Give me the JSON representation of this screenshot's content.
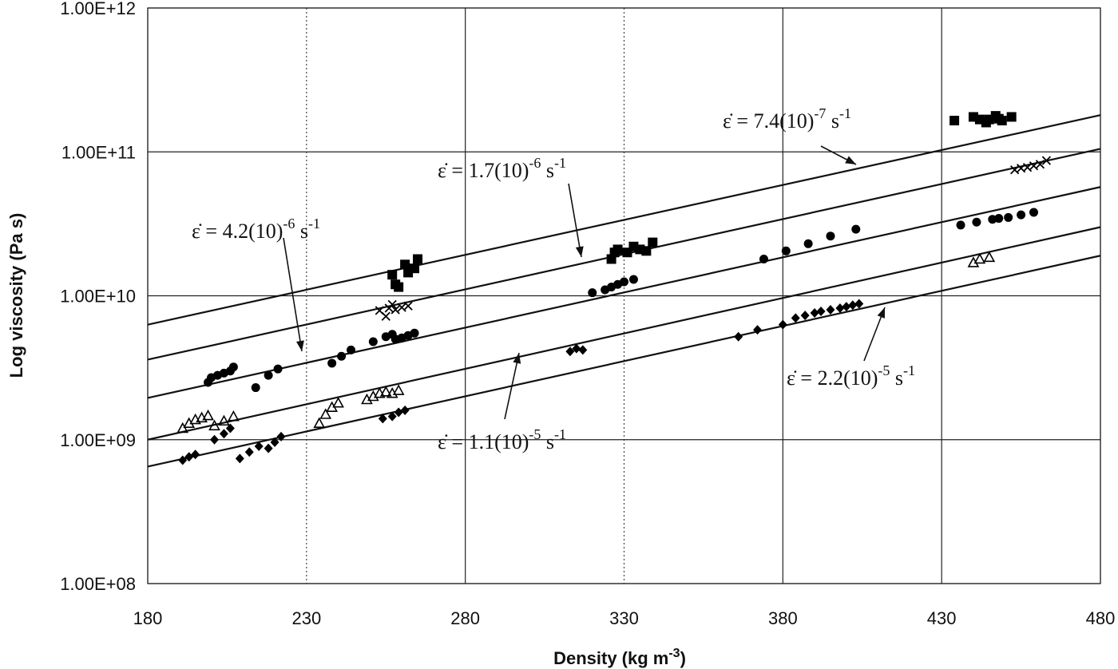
{
  "chart_data": {
    "type": "scatter",
    "title": "",
    "xlabel": "Density (kg m",
    "xlabel_sup": "-3",
    "xlabel_close": ")",
    "ylabel": "Log viscosity (Pa s)",
    "y_scale": "log",
    "xlim": [
      180,
      480
    ],
    "ylim": [
      100000000,
      1000000000000
    ],
    "x_ticks": [
      180,
      230,
      280,
      330,
      380,
      430,
      480
    ],
    "x_tick_labels": [
      "180",
      "230",
      "280",
      "330",
      "380",
      "430",
      "480"
    ],
    "y_ticks": [
      100000000,
      1000000000,
      10000000000,
      100000000000,
      1000000000000
    ],
    "y_tick_labels": [
      "1.00E+08",
      "1.00E+09",
      "1.00E+10",
      "1.00E+11",
      "1.00E+12"
    ],
    "grid": true,
    "series": [
      {
        "marker": "square",
        "color": "#000000",
        "points": [
          [
            257,
            14000000000
          ],
          [
            258,
            12000000000
          ],
          [
            259,
            11500000000
          ],
          [
            261,
            16500000000
          ],
          [
            262,
            14500000000
          ],
          [
            264,
            15500000000
          ],
          [
            265,
            18000000000
          ],
          [
            326,
            18000000000
          ],
          [
            327,
            20000000000
          ],
          [
            328,
            21000000000
          ],
          [
            331,
            20000000000
          ],
          [
            333,
            22000000000
          ],
          [
            335,
            21000000000
          ],
          [
            337,
            20500000000
          ],
          [
            339,
            23500000000
          ],
          [
            434,
            165000000000
          ],
          [
            440,
            175000000000
          ],
          [
            442,
            168000000000
          ],
          [
            444,
            160000000000
          ],
          [
            445,
            168000000000
          ],
          [
            447,
            178000000000
          ],
          [
            448,
            170000000000
          ],
          [
            449,
            165000000000
          ],
          [
            452,
            175000000000
          ]
        ]
      },
      {
        "marker": "x",
        "color": "#000000",
        "points": [
          [
            253,
            7900000000
          ],
          [
            255,
            7200000000
          ],
          [
            256,
            8200000000
          ],
          [
            257,
            8700000000
          ],
          [
            258,
            8000000000
          ],
          [
            260,
            8300000000
          ],
          [
            262,
            8500000000
          ],
          [
            453,
            75000000000
          ],
          [
            455,
            77000000000
          ],
          [
            457,
            78000000000
          ],
          [
            459,
            80000000000
          ],
          [
            461,
            82000000000
          ],
          [
            463,
            87000000000
          ]
        ]
      },
      {
        "marker": "circle",
        "color": "#000000",
        "points": [
          [
            199,
            2500000000
          ],
          [
            200,
            2700000000
          ],
          [
            202,
            2800000000
          ],
          [
            204,
            2900000000
          ],
          [
            206,
            3000000000
          ],
          [
            207,
            3200000000
          ],
          [
            214,
            2300000000
          ],
          [
            218,
            2800000000
          ],
          [
            221,
            3100000000
          ],
          [
            238,
            3400000000
          ],
          [
            241,
            3800000000
          ],
          [
            244,
            4200000000
          ],
          [
            251,
            4800000000
          ],
          [
            255,
            5200000000
          ],
          [
            257,
            5400000000
          ],
          [
            258,
            5000000000
          ],
          [
            260,
            5100000000
          ],
          [
            262,
            5300000000
          ],
          [
            264,
            5500000000
          ],
          [
            320,
            10500000000
          ],
          [
            324,
            11000000000
          ],
          [
            326,
            11500000000
          ],
          [
            328,
            12000000000
          ],
          [
            330,
            12500000000
          ],
          [
            333,
            13000000000
          ],
          [
            374,
            18000000000
          ],
          [
            381,
            20500000000
          ],
          [
            388,
            23000000000
          ],
          [
            395,
            26000000000
          ],
          [
            403,
            29000000000
          ],
          [
            436,
            31000000000
          ],
          [
            441,
            32500000000
          ],
          [
            446,
            34000000000
          ],
          [
            448,
            34500000000
          ],
          [
            451,
            35000000000
          ],
          [
            455,
            36500000000
          ],
          [
            459,
            38000000000
          ]
        ]
      },
      {
        "marker": "triangle",
        "color": "#000000",
        "points": [
          [
            191,
            1200000000
          ],
          [
            193,
            1300000000
          ],
          [
            195,
            1380000000
          ],
          [
            197,
            1420000000
          ],
          [
            199,
            1470000000
          ],
          [
            201,
            1250000000
          ],
          [
            204,
            1350000000
          ],
          [
            207,
            1450000000
          ],
          [
            234,
            1300000000
          ],
          [
            236,
            1500000000
          ],
          [
            238,
            1680000000
          ],
          [
            240,
            1800000000
          ],
          [
            249,
            1900000000
          ],
          [
            251,
            2000000000
          ],
          [
            253,
            2100000000
          ],
          [
            255,
            2150000000
          ],
          [
            257,
            2100000000
          ],
          [
            259,
            2200000000
          ],
          [
            440,
            17000000000
          ],
          [
            442,
            18000000000
          ],
          [
            445,
            18500000000
          ]
        ]
      },
      {
        "marker": "diamond",
        "color": "#000000",
        "points": [
          [
            191,
            720000000
          ],
          [
            193,
            760000000
          ],
          [
            195,
            790000000
          ],
          [
            201,
            1000000000
          ],
          [
            204,
            1100000000
          ],
          [
            206,
            1200000000
          ],
          [
            209,
            740000000
          ],
          [
            212,
            820000000
          ],
          [
            215,
            900000000
          ],
          [
            218,
            870000000
          ],
          [
            220,
            960000000
          ],
          [
            222,
            1050000000
          ],
          [
            254,
            1400000000
          ],
          [
            257,
            1450000000
          ],
          [
            259,
            1550000000
          ],
          [
            261,
            1600000000
          ],
          [
            313,
            4100000000
          ],
          [
            315,
            4300000000
          ],
          [
            317,
            4200000000
          ],
          [
            366,
            5200000000
          ],
          [
            372,
            5800000000
          ],
          [
            380,
            6300000000
          ],
          [
            384,
            7000000000
          ],
          [
            387,
            7300000000
          ],
          [
            390,
            7600000000
          ],
          [
            392,
            7800000000
          ],
          [
            395,
            8000000000
          ],
          [
            398,
            8200000000
          ],
          [
            400,
            8400000000
          ],
          [
            402,
            8600000000
          ],
          [
            404,
            8800000000
          ]
        ]
      }
    ],
    "fit_lines": [
      {
        "x": [
          180,
          480
        ],
        "y": [
          6300000000,
          180000000000
        ]
      },
      {
        "x": [
          180,
          480
        ],
        "y": [
          3600000000,
          105000000000
        ]
      },
      {
        "x": [
          180,
          480
        ],
        "y": [
          1950000000,
          57000000000
        ]
      },
      {
        "x": [
          180,
          480
        ],
        "y": [
          1000000000,
          30000000000
        ]
      },
      {
        "x": [
          180,
          480
        ],
        "y": [
          650000000,
          19000000000
        ]
      }
    ],
    "annotations": [
      {
        "text": "ε̇ = 7.4(10)",
        "sup": "-7",
        "tail": " s",
        "tail_sup": "-1"
      },
      {
        "text": "ε̇ = 1.7(10)",
        "sup": "-6",
        "tail": " s",
        "tail_sup": "-1"
      },
      {
        "text": "ε̇ = 4.2(10)",
        "sup": "-6",
        "tail": " s",
        "tail_sup": "-1"
      },
      {
        "text": "ε̇ = 2.2(10)",
        "sup": "-5",
        "tail": " s",
        "tail_sup": "-1"
      },
      {
        "text": "ε̇ = 1.1(10)",
        "sup": "-5",
        "tail": " s",
        "tail_sup": "-1"
      }
    ]
  }
}
